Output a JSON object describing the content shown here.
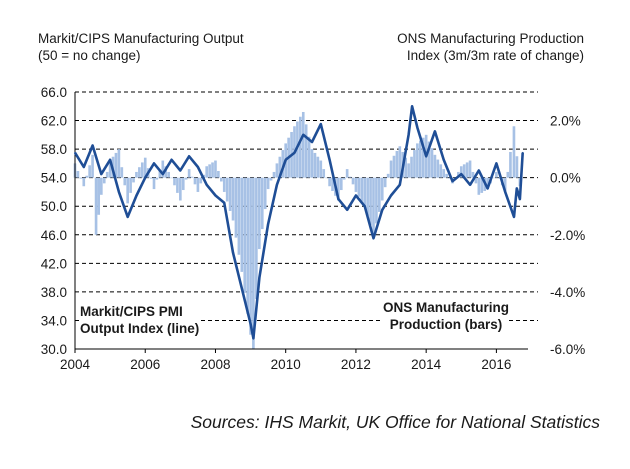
{
  "left_heading": [
    "Markit/CIPS Manufacturing Output",
    "(50 = no change)"
  ],
  "right_heading": [
    "ONS Manufacturing Production",
    "Index (3m/3m rate of change)"
  ],
  "source": "Sources: IHS Markit, UK Office for National Statistics",
  "colors": {
    "line": "#1f4e96",
    "bars": "#a7c1e5",
    "axis": "#000000"
  },
  "chart_data": {
    "type": "line",
    "title": "",
    "left_axis": {
      "ylim": [
        30,
        66
      ],
      "ticks": [
        "66.0",
        "62.0",
        "58.0",
        "54.0",
        "50.0",
        "46.0",
        "42.0",
        "38.0",
        "34.0",
        "30.0"
      ]
    },
    "right_axis": {
      "ylim": [
        -6.0,
        3.0
      ],
      "ticks": [
        "2.0%",
        "0.0%",
        "-2.0%",
        "-4.0%",
        "-6.0%"
      ],
      "tick_values": [
        2.0,
        0.0,
        -2.0,
        -4.0,
        -6.0
      ]
    },
    "x_axis": {
      "xlim": [
        2004,
        2016.9
      ],
      "ticks": [
        "2004",
        "2006",
        "2008",
        "2010",
        "2012",
        "2014",
        "2016"
      ],
      "tick_values": [
        2004,
        2006,
        2008,
        2010,
        2012,
        2014,
        2016
      ]
    },
    "gridlines": "dashed-left-axis",
    "annotations": [
      {
        "lines": [
          "Markit/CIPS PMI",
          "Output Index (line)"
        ],
        "position": "bottom-left"
      },
      {
        "lines": [
          "ONS Manufacturing",
          "Production (bars)"
        ],
        "position": "bottom-right"
      }
    ],
    "series": [
      {
        "axis": "left",
        "style": "line",
        "x": [
          2004.0,
          2004.25,
          2004.5,
          2004.75,
          2005.0,
          2005.25,
          2005.5,
          2005.75,
          2006.0,
          2006.25,
          2006.5,
          2006.75,
          2007.0,
          2007.25,
          2007.5,
          2007.75,
          2008.0,
          2008.25,
          2008.5,
          2008.75,
          2009.0,
          2009.08,
          2009.25,
          2009.5,
          2009.75,
          2010.0,
          2010.25,
          2010.5,
          2010.75,
          2011.0,
          2011.25,
          2011.5,
          2011.75,
          2012.0,
          2012.25,
          2012.5,
          2012.75,
          2013.0,
          2013.25,
          2013.5,
          2013.6,
          2013.75,
          2014.0,
          2014.25,
          2014.5,
          2014.75,
          2015.0,
          2015.25,
          2015.5,
          2015.75,
          2016.0,
          2016.25,
          2016.5,
          2016.58,
          2016.67,
          2016.75
        ],
        "values": [
          57.5,
          55.5,
          58.5,
          54.5,
          56.5,
          52.0,
          48.5,
          51.5,
          54.0,
          56.0,
          54.5,
          56.5,
          55.0,
          57.0,
          55.5,
          53.0,
          51.5,
          50.5,
          43.5,
          38.5,
          33.5,
          31.5,
          40.0,
          47.5,
          53.0,
          56.5,
          57.5,
          60.0,
          59.0,
          61.5,
          56.5,
          51.0,
          49.5,
          51.5,
          50.0,
          45.5,
          49.5,
          51.5,
          53.0,
          60.0,
          64.0,
          61.0,
          57.0,
          60.5,
          56.5,
          53.5,
          54.5,
          53.0,
          55.0,
          52.5,
          56.0,
          52.0,
          48.5,
          52.5,
          51.0,
          57.5
        ]
      },
      {
        "axis": "right",
        "style": "bars",
        "x": [
          2004.0,
          2004.25,
          2004.5,
          2004.6,
          2004.75,
          2005.0,
          2005.25,
          2005.5,
          2005.75,
          2006.0,
          2006.25,
          2006.5,
          2006.75,
          2007.0,
          2007.25,
          2007.5,
          2007.75,
          2008.0,
          2008.25,
          2008.5,
          2008.75,
          2009.0,
          2009.08,
          2009.25,
          2009.5,
          2009.75,
          2010.0,
          2010.25,
          2010.5,
          2010.75,
          2011.0,
          2011.25,
          2011.5,
          2011.75,
          2012.0,
          2012.25,
          2012.5,
          2012.75,
          2013.0,
          2013.25,
          2013.5,
          2013.75,
          2014.0,
          2014.25,
          2014.5,
          2014.75,
          2015.0,
          2015.25,
          2015.5,
          2015.75,
          2016.0,
          2016.25,
          2016.4,
          2016.5,
          2016.67
        ],
        "values": [
          0.5,
          -0.3,
          0.8,
          -2.0,
          -0.6,
          0.6,
          1.0,
          -0.9,
          0.2,
          0.7,
          -0.4,
          0.6,
          0.0,
          -0.8,
          0.3,
          -0.5,
          0.4,
          0.6,
          -0.5,
          -1.5,
          -3.3,
          -5.5,
          -6.0,
          -2.5,
          -0.4,
          0.5,
          1.2,
          1.8,
          2.3,
          1.0,
          0.6,
          -0.3,
          -0.8,
          0.3,
          -0.5,
          -1.0,
          -2.0,
          -0.8,
          0.6,
          1.1,
          0.5,
          1.2,
          1.5,
          0.8,
          0.3,
          -0.2,
          0.4,
          0.6,
          -0.6,
          -0.4,
          0.2,
          -0.5,
          0.9,
          1.8,
          -0.3
        ]
      }
    ]
  }
}
